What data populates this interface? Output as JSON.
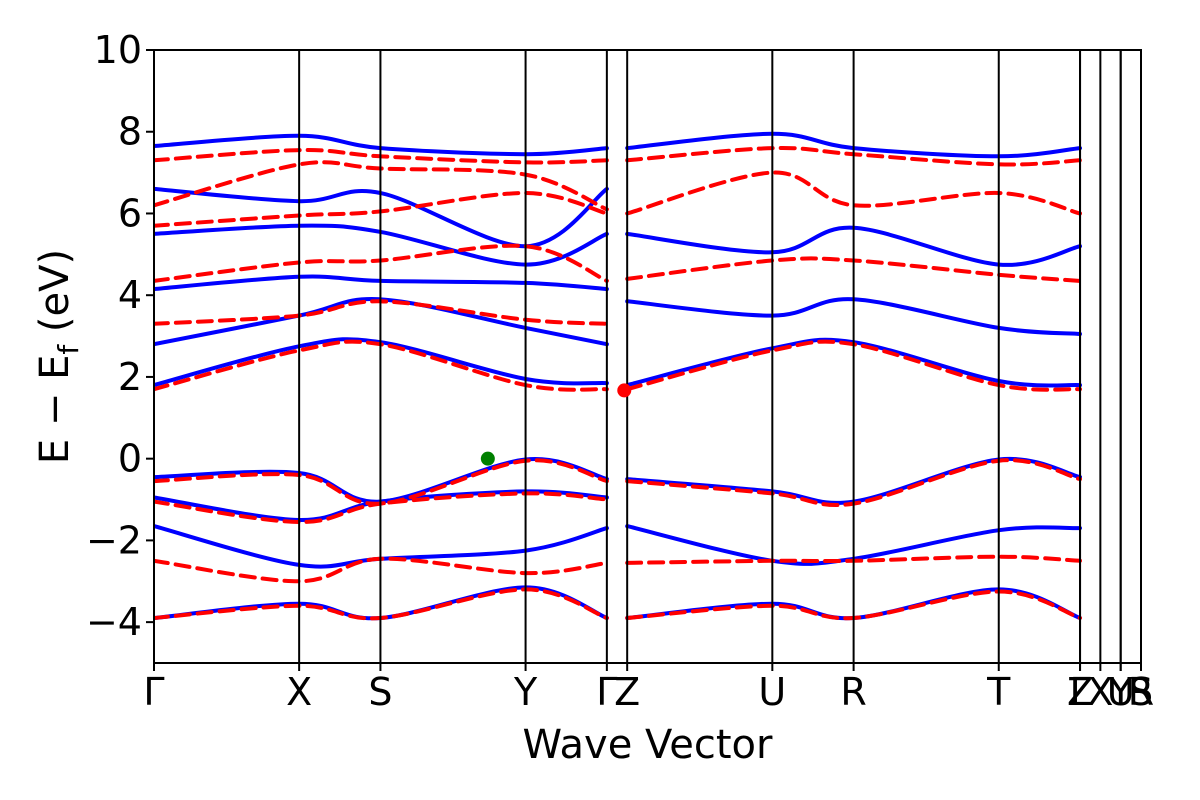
{
  "chart_data": {
    "type": "line",
    "title": "",
    "xlabel": "Wave Vector",
    "ylabel": "E − E",
    "ylabel_sub": "f",
    "ylabel_unit": " (eV)",
    "ylim": [
      -5,
      10
    ],
    "yticks": [
      -4,
      -2,
      0,
      2,
      4,
      6,
      8,
      10
    ],
    "ytick_labels": [
      "−4",
      "−2",
      "0",
      "2",
      "4",
      "6",
      "8",
      "10"
    ],
    "kpath_labels": [
      {
        "label": "Γ",
        "k": 0.0
      },
      {
        "label": "X",
        "k": 1.0
      },
      {
        "label": "S",
        "k": 1.56
      },
      {
        "label": "Y",
        "k": 2.56
      },
      {
        "label": "Γ",
        "k": 3.12
      },
      {
        "label": "Z",
        "k": 3.26
      },
      {
        "label": "U",
        "k": 4.26
      },
      {
        "label": "R",
        "k": 4.82
      },
      {
        "label": "T",
        "k": 5.82
      },
      {
        "label": "Z",
        "k": 6.38
      },
      {
        "label": "Γ",
        "k": 6.38
      },
      {
        "label": "X",
        "k": 6.52
      },
      {
        "label": "Y",
        "k": 6.66
      },
      {
        "label": "U",
        "k": 6.66
      },
      {
        "label": "R",
        "k": 6.8
      },
      {
        "label": "S",
        "k": 6.8
      }
    ],
    "xlim": [
      0,
      6.8
    ],
    "grid": false,
    "legend": "none",
    "series": [
      {
        "style": "solid",
        "color": "#0000ff",
        "segments": [
          {
            "k": [
              0,
              1.0,
              1.56,
              2.56,
              3.12
            ],
            "e": [
              -0.45,
              -0.35,
              -1.05,
              -0.02,
              -0.5
            ]
          },
          {
            "k": [
              0,
              1.0,
              1.56,
              2.56,
              3.12
            ],
            "e": [
              -0.95,
              -1.5,
              -1.05,
              -0.8,
              -0.95
            ]
          },
          {
            "k": [
              0,
              1.0,
              1.56,
              2.56,
              3.12
            ],
            "e": [
              -1.65,
              -2.6,
              -2.45,
              -2.25,
              -1.7
            ]
          },
          {
            "k": [
              0,
              1.0,
              1.56,
              2.56,
              3.12
            ],
            "e": [
              -3.9,
              -3.55,
              -3.9,
              -3.15,
              -3.9
            ]
          },
          {
            "k": [
              0,
              1.0,
              1.56,
              2.56,
              3.12
            ],
            "e": [
              1.8,
              2.75,
              2.85,
              1.95,
              1.85
            ]
          },
          {
            "k": [
              0,
              1.0,
              1.56,
              2.56,
              3.12
            ],
            "e": [
              2.8,
              3.5,
              3.9,
              3.2,
              2.8
            ]
          },
          {
            "k": [
              0,
              1.0,
              1.56,
              2.56,
              3.12
            ],
            "e": [
              4.15,
              4.45,
              4.35,
              4.3,
              4.15
            ]
          },
          {
            "k": [
              0,
              1.0,
              1.56,
              2.56,
              3.12
            ],
            "e": [
              5.5,
              5.7,
              5.55,
              4.75,
              5.5
            ]
          },
          {
            "k": [
              0,
              1.0,
              1.56,
              2.56,
              3.12
            ],
            "e": [
              6.6,
              6.3,
              6.5,
              5.2,
              6.6
            ]
          },
          {
            "k": [
              0,
              1.0,
              1.56,
              2.56,
              3.12
            ],
            "e": [
              7.65,
              7.9,
              7.6,
              7.45,
              7.6
            ]
          },
          {
            "k": [
              3.26,
              4.26,
              4.82,
              5.82,
              6.38
            ],
            "e": [
              -0.5,
              -0.8,
              -1.05,
              -0.02,
              -0.45
            ]
          },
          {
            "k": [
              3.26,
              4.26,
              4.82,
              5.82,
              6.38
            ],
            "e": [
              -1.65,
              -2.5,
              -2.45,
              -1.75,
              -1.7
            ]
          },
          {
            "k": [
              3.26,
              4.26,
              4.82,
              5.82,
              6.38
            ],
            "e": [
              -3.9,
              -3.55,
              -3.9,
              -3.2,
              -3.9
            ]
          },
          {
            "k": [
              3.26,
              4.26,
              4.82,
              5.82,
              6.38
            ],
            "e": [
              1.8,
              2.7,
              2.85,
              1.9,
              1.8
            ]
          },
          {
            "k": [
              3.26,
              4.26,
              4.82,
              5.82,
              6.38
            ],
            "e": [
              3.85,
              3.5,
              3.9,
              3.2,
              3.05
            ]
          },
          {
            "k": [
              3.26,
              4.26,
              4.82,
              5.82,
              6.38
            ],
            "e": [
              5.5,
              5.05,
              5.65,
              4.75,
              5.2
            ]
          },
          {
            "k": [
              3.26,
              4.26,
              4.82,
              5.82,
              6.38
            ],
            "e": [
              7.6,
              7.95,
              7.6,
              7.4,
              7.6
            ]
          }
        ]
      },
      {
        "style": "dashed",
        "color": "#ff0000",
        "segments": [
          {
            "k": [
              0,
              1.0,
              1.56,
              2.56,
              3.12
            ],
            "e": [
              -0.55,
              -0.4,
              -1.1,
              -0.05,
              -0.55
            ]
          },
          {
            "k": [
              0,
              1.0,
              1.56,
              2.56,
              3.12
            ],
            "e": [
              -1.05,
              -1.55,
              -1.1,
              -0.85,
              -1.0
            ]
          },
          {
            "k": [
              0,
              1.0,
              1.56,
              2.56,
              3.12
            ],
            "e": [
              -2.5,
              -3.0,
              -2.45,
              -2.8,
              -2.55
            ]
          },
          {
            "k": [
              0,
              1.0,
              1.56,
              2.56,
              3.12
            ],
            "e": [
              -3.9,
              -3.6,
              -3.9,
              -3.2,
              -3.9
            ]
          },
          {
            "k": [
              0,
              1.0,
              1.56,
              2.56,
              3.12
            ],
            "e": [
              1.7,
              2.65,
              2.8,
              1.8,
              1.7
            ]
          },
          {
            "k": [
              0,
              1.0,
              1.56,
              2.56,
              3.12
            ],
            "e": [
              3.3,
              3.5,
              3.85,
              3.4,
              3.3
            ]
          },
          {
            "k": [
              0,
              1.0,
              1.56,
              2.56,
              3.12
            ],
            "e": [
              4.35,
              4.8,
              4.85,
              5.2,
              4.35
            ]
          },
          {
            "k": [
              0,
              1.0,
              1.56,
              2.56,
              3.12
            ],
            "e": [
              5.7,
              5.95,
              6.05,
              6.5,
              6.0
            ]
          },
          {
            "k": [
              0,
              1.0,
              1.56,
              2.56,
              3.12
            ],
            "e": [
              6.2,
              7.2,
              7.1,
              6.95,
              6.1
            ]
          },
          {
            "k": [
              0,
              1.0,
              1.56,
              2.56,
              3.12
            ],
            "e": [
              7.3,
              7.55,
              7.4,
              7.25,
              7.3
            ]
          },
          {
            "k": [
              3.26,
              4.26,
              4.82,
              5.82,
              6.38
            ],
            "e": [
              -0.55,
              -0.85,
              -1.1,
              -0.05,
              -0.5
            ]
          },
          {
            "k": [
              3.26,
              4.26,
              4.82,
              5.82,
              6.38
            ],
            "e": [
              -2.55,
              -2.5,
              -2.5,
              -2.4,
              -2.5
            ]
          },
          {
            "k": [
              3.26,
              4.26,
              4.82,
              5.82,
              6.38
            ],
            "e": [
              -3.9,
              -3.6,
              -3.9,
              -3.25,
              -3.9
            ]
          },
          {
            "k": [
              3.26,
              4.26,
              4.82,
              5.82,
              6.38
            ],
            "e": [
              1.7,
              2.65,
              2.8,
              1.8,
              1.7
            ]
          },
          {
            "k": [
              3.26,
              4.26,
              4.82,
              5.82,
              6.38
            ],
            "e": [
              4.4,
              4.85,
              4.85,
              4.5,
              4.35
            ]
          },
          {
            "k": [
              3.26,
              4.26,
              4.82,
              5.82,
              6.38
            ],
            "e": [
              6.0,
              7.0,
              6.2,
              6.5,
              6.0
            ]
          },
          {
            "k": [
              3.26,
              4.26,
              4.82,
              5.82,
              6.38
            ],
            "e": [
              7.3,
              7.6,
              7.45,
              7.2,
              7.3
            ]
          }
        ]
      }
    ],
    "markers": [
      {
        "name": "valence-band-maximum",
        "k": 2.3,
        "e": 0.0,
        "color": "#008000"
      },
      {
        "name": "conduction-band-minimum",
        "k": 3.24,
        "e": 1.67,
        "color": "#ff0000"
      }
    ]
  }
}
